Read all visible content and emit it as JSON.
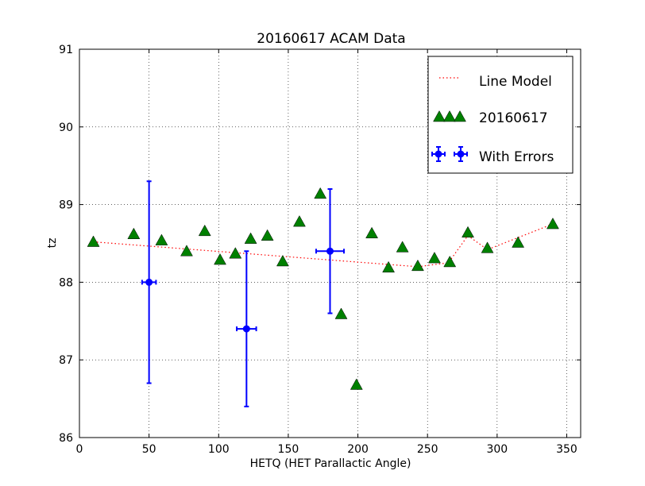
{
  "chart_data": {
    "type": "scatter",
    "title": "20160617 ACAM Data",
    "xlabel": "HETQ (HET Parallactic Angle)",
    "ylabel": "tz",
    "xlim": [
      0,
      360
    ],
    "ylim": [
      86,
      91
    ],
    "xticks": [
      0,
      50,
      100,
      150,
      200,
      250,
      300,
      350
    ],
    "yticks": [
      86,
      87,
      88,
      89,
      90,
      91
    ],
    "grid": true,
    "legend_placement": "top-right",
    "colors": {
      "line_model": "#ff0000",
      "observations": "#008000",
      "errors": "#0000ff"
    },
    "series": [
      {
        "name": "Line Model",
        "style": "dotted-line",
        "points": [
          [
            10,
            88.52
          ],
          [
            243,
            88.2
          ],
          [
            265,
            88.25
          ],
          [
            279,
            88.6
          ],
          [
            293,
            88.42
          ],
          [
            340,
            88.75
          ]
        ]
      },
      {
        "name": "20160617",
        "style": "triangle-marker",
        "points": [
          [
            10,
            88.52
          ],
          [
            39,
            88.62
          ],
          [
            59,
            88.54
          ],
          [
            77,
            88.4
          ],
          [
            90,
            88.66
          ],
          [
            101,
            88.29
          ],
          [
            112,
            88.37
          ],
          [
            123,
            88.56
          ],
          [
            135,
            88.6
          ],
          [
            146,
            88.27
          ],
          [
            158,
            88.78
          ],
          [
            173,
            89.14
          ],
          [
            188,
            87.59
          ],
          [
            199,
            86.68
          ],
          [
            210,
            88.63
          ],
          [
            222,
            88.19
          ],
          [
            232,
            88.45
          ],
          [
            243,
            88.21
          ],
          [
            255,
            88.31
          ],
          [
            266,
            88.26
          ],
          [
            279,
            88.64
          ],
          [
            293,
            88.44
          ],
          [
            315,
            88.51
          ],
          [
            340,
            88.75
          ]
        ]
      },
      {
        "name": "With Errors",
        "style": "errorbar",
        "points": [
          {
            "x": 50,
            "y": 88.0,
            "xerr": 5,
            "yerr": 1.3
          },
          {
            "x": 120,
            "y": 87.4,
            "xerr": 7,
            "yerr": 1.0
          },
          {
            "x": 180,
            "y": 88.4,
            "xerr": 10,
            "yerr": 0.8
          }
        ]
      }
    ]
  }
}
